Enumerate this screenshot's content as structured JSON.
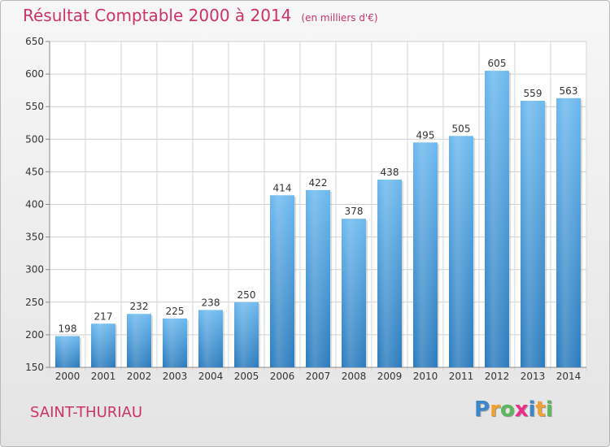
{
  "title": "Résultat Comptable 2000 à 2014",
  "unit": "(en milliers d'€)",
  "commune": "SAINT-THURIAU",
  "logo": {
    "text": "Proxiti",
    "letters": [
      "P",
      "r",
      "o",
      "x",
      "i",
      "t",
      "i"
    ],
    "colors": [
      "#3b87c9",
      "#f0a030",
      "#5cb85c",
      "#e8308a",
      "#3b87c9",
      "#f0a030",
      "#5cb85c"
    ]
  },
  "colors": {
    "title": "#cc3366",
    "bar_top": "#6cb8ee",
    "bar_bottom": "#2b7bbd"
  },
  "chart_data": {
    "type": "bar",
    "title": "Résultat Comptable 2000 à 2014",
    "categories": [
      "2000",
      "2001",
      "2002",
      "2003",
      "2004",
      "2005",
      "2006",
      "2007",
      "2008",
      "2009",
      "2010",
      "2011",
      "2012",
      "2013",
      "2014"
    ],
    "values": [
      198,
      217,
      232,
      225,
      238,
      250,
      414,
      422,
      378,
      438,
      495,
      505,
      605,
      559,
      563
    ],
    "ylim": [
      150,
      650
    ],
    "yticks": [
      150,
      200,
      250,
      300,
      350,
      400,
      450,
      500,
      550,
      600,
      650
    ],
    "grid": true,
    "xlabel": "",
    "ylabel": ""
  }
}
